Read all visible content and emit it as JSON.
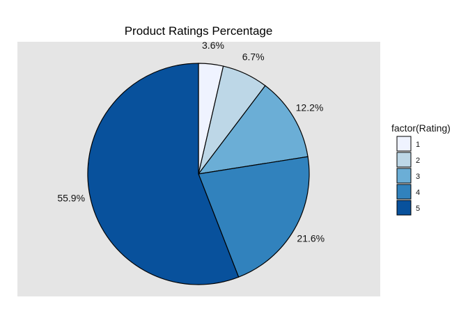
{
  "chart_data": {
    "type": "pie",
    "title": "Product Ratings Percentage",
    "legend_title": "factor(Rating)",
    "legend_position": "right",
    "grid": false,
    "categories": [
      "1",
      "2",
      "3",
      "4",
      "5"
    ],
    "values": [
      3.6,
      6.7,
      12.2,
      21.6,
      55.9
    ],
    "labels": [
      "3.6%",
      "6.7%",
      "12.2%",
      "21.6%",
      "55.9%"
    ],
    "colors": [
      "#eff3ff",
      "#bdd7e7",
      "#6baed6",
      "#3182bd",
      "#08519c"
    ],
    "panel_background": "#e5e5e5"
  }
}
